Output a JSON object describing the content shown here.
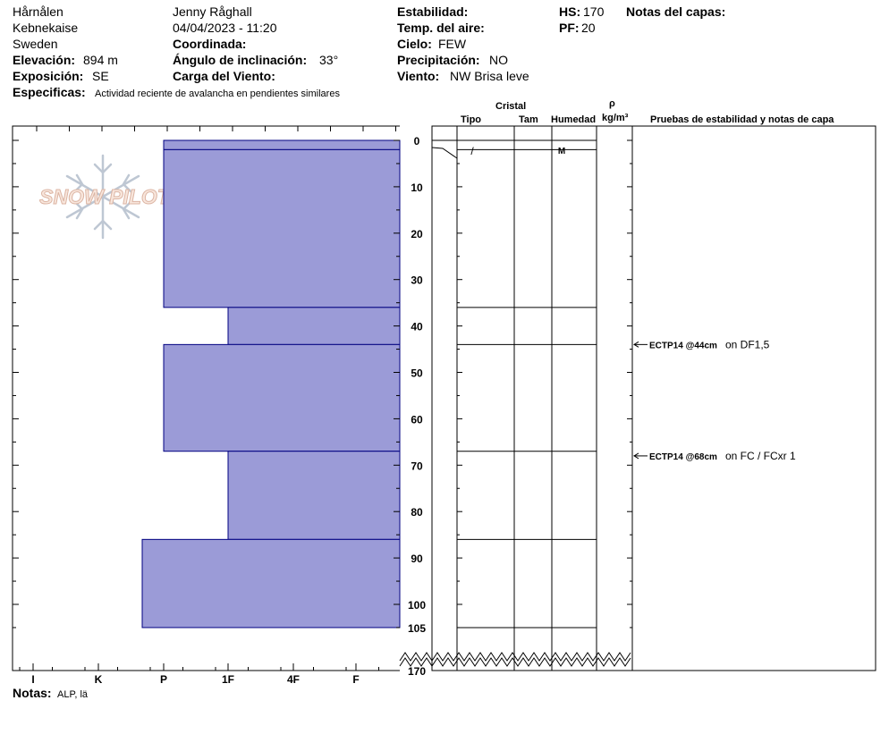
{
  "header": {
    "location": "Hårnålen",
    "region": "Kebnekaise",
    "country": "Sweden",
    "elevation_label": "Elevación:",
    "elevation_value": "894 m",
    "aspect_label": "Exposición:",
    "aspect_value": "SE",
    "specifics_label": "Especificas:",
    "specifics_value": "Actividad reciente de avalancha en pendientes similares",
    "observer": "Jenny Råghall",
    "datetime": "04/04/2023 - 11:20",
    "coordinate_label": "Coordinada:",
    "incline_label": "Ángulo de inclinación:",
    "incline_value": "33°",
    "wind_load_label": "Carga del Viento:",
    "stability_label": "Estabilidad:",
    "air_temp_label": "Temp. del aire:",
    "sky_label": "Cielo:",
    "sky_value": "FEW",
    "precip_label": "Precipitación:",
    "precip_value": "NO",
    "wind_label": "Viento:",
    "wind_value": "NW Brisa leve",
    "hs_label": "HS:",
    "hs_value": "170",
    "pf_label": "PF:",
    "pf_value": "20",
    "layer_notes_label": "Notas del capas:"
  },
  "columns": {
    "crystal": "Cristal",
    "type": "Tipo",
    "size": "Tam",
    "moisture": "Humedad",
    "rho": "ρ",
    "density_unit": "kg/m³",
    "tests": "Pruebas de estabilidad y notas de capa"
  },
  "footer": {
    "notes_label": "Notas:",
    "notes_value": "ALP, lä"
  },
  "logo_text": "SNOW PILOT",
  "colors": {
    "hardness_fill": "#9b9bd7",
    "hardness_stroke": "#000080"
  },
  "chart_data": {
    "type": "bar",
    "hardness_scale": [
      "I",
      "K",
      "P",
      "1F",
      "4F",
      "F"
    ],
    "depth_ticks": [
      0,
      10,
      20,
      30,
      40,
      50,
      60,
      70,
      80,
      90,
      100,
      105,
      170
    ],
    "depth_range": [
      0,
      170
    ],
    "layers": [
      {
        "top": 0,
        "bottom": 2,
        "hardness": "P"
      },
      {
        "top": 2,
        "bottom": 36,
        "hardness": "P",
        "grain_symbol": "/",
        "moisture": "M"
      },
      {
        "top": 36,
        "bottom": 44,
        "hardness": "1F"
      },
      {
        "top": 44,
        "bottom": 67,
        "hardness": "P"
      },
      {
        "top": 67,
        "bottom": 86,
        "hardness": "1F"
      },
      {
        "top": 86,
        "bottom": 105,
        "hardness": "K+"
      }
    ],
    "tests": [
      {
        "depth": 44,
        "code": "ECTP14 @44cm",
        "note": "on DF1,5"
      },
      {
        "depth": 68,
        "code": "ECTP14 @68cm",
        "note": "on FC / FCxr 1"
      }
    ]
  }
}
